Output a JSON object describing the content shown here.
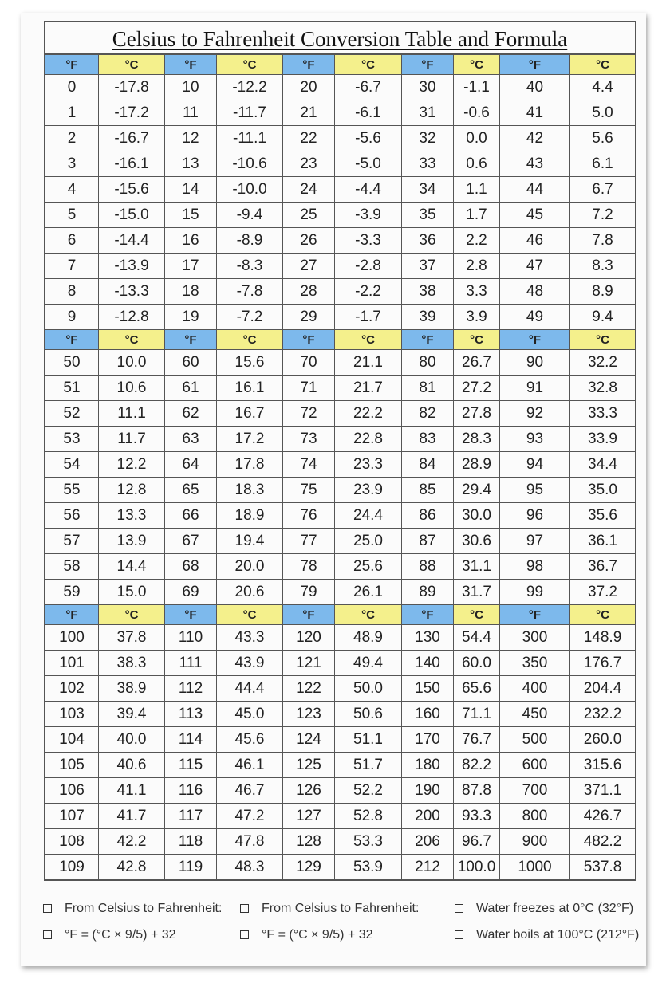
{
  "title": "Celsius to Fahrenheit Conversion Table and Formula",
  "sections": [
    {
      "header": [
        "°F",
        "°C",
        "°F",
        "°C",
        "°F",
        "°C",
        "°F",
        "°C",
        "°F",
        "°C"
      ],
      "rows": [
        [
          "0",
          "-17.8",
          "10",
          "-12.2",
          "20",
          "-6.7",
          "30",
          "-1.1",
          "40",
          "4.4"
        ],
        [
          "1",
          "-17.2",
          "11",
          "-11.7",
          "21",
          "-6.1",
          "31",
          "-0.6",
          "41",
          "5.0"
        ],
        [
          "2",
          "-16.7",
          "12",
          "-11.1",
          "22",
          "-5.6",
          "32",
          "0.0",
          "42",
          "5.6"
        ],
        [
          "3",
          "-16.1",
          "13",
          "-10.6",
          "23",
          "-5.0",
          "33",
          "0.6",
          "43",
          "6.1"
        ],
        [
          "4",
          "-15.6",
          "14",
          "-10.0",
          "24",
          "-4.4",
          "34",
          "1.1",
          "44",
          "6.7"
        ],
        [
          "5",
          "-15.0",
          "15",
          "-9.4",
          "25",
          "-3.9",
          "35",
          "1.7",
          "45",
          "7.2"
        ],
        [
          "6",
          "-14.4",
          "16",
          "-8.9",
          "26",
          "-3.3",
          "36",
          "2.2",
          "46",
          "7.8"
        ],
        [
          "7",
          "-13.9",
          "17",
          "-8.3",
          "27",
          "-2.8",
          "37",
          "2.8",
          "47",
          "8.3"
        ],
        [
          "8",
          "-13.3",
          "18",
          "-7.8",
          "28",
          "-2.2",
          "38",
          "3.3",
          "48",
          "8.9"
        ],
        [
          "9",
          "-12.8",
          "19",
          "-7.2",
          "29",
          "-1.7",
          "39",
          "3.9",
          "49",
          "9.4"
        ]
      ]
    },
    {
      "header": [
        "°F",
        "°C",
        "°F",
        "°C",
        "°F",
        "°C",
        "°F",
        "°C",
        "°F",
        "°C"
      ],
      "rows": [
        [
          "50",
          "10.0",
          "60",
          "15.6",
          "70",
          "21.1",
          "80",
          "26.7",
          "90",
          "32.2"
        ],
        [
          "51",
          "10.6",
          "61",
          "16.1",
          "71",
          "21.7",
          "81",
          "27.2",
          "91",
          "32.8"
        ],
        [
          "52",
          "11.1",
          "62",
          "16.7",
          "72",
          "22.2",
          "82",
          "27.8",
          "92",
          "33.3"
        ],
        [
          "53",
          "11.7",
          "63",
          "17.2",
          "73",
          "22.8",
          "83",
          "28.3",
          "93",
          "33.9"
        ],
        [
          "54",
          "12.2",
          "64",
          "17.8",
          "74",
          "23.3",
          "84",
          "28.9",
          "94",
          "34.4"
        ],
        [
          "55",
          "12.8",
          "65",
          "18.3",
          "75",
          "23.9",
          "85",
          "29.4",
          "95",
          "35.0"
        ],
        [
          "56",
          "13.3",
          "66",
          "18.9",
          "76",
          "24.4",
          "86",
          "30.0",
          "96",
          "35.6"
        ],
        [
          "57",
          "13.9",
          "67",
          "19.4",
          "77",
          "25.0",
          "87",
          "30.6",
          "97",
          "36.1"
        ],
        [
          "58",
          "14.4",
          "68",
          "20.0",
          "78",
          "25.6",
          "88",
          "31.1",
          "98",
          "36.7"
        ],
        [
          "59",
          "15.0",
          "69",
          "20.6",
          "79",
          "26.1",
          "89",
          "31.7",
          "99",
          "37.2"
        ]
      ]
    },
    {
      "header": [
        "°F",
        "°C",
        "°F",
        "°C",
        "°F",
        "°C",
        "°F",
        "°C",
        "°F",
        "°C"
      ],
      "rows": [
        [
          "100",
          "37.8",
          "110",
          "43.3",
          "120",
          "48.9",
          "130",
          "54.4",
          "300",
          "148.9"
        ],
        [
          "101",
          "38.3",
          "111",
          "43.9",
          "121",
          "49.4",
          "140",
          "60.0",
          "350",
          "176.7"
        ],
        [
          "102",
          "38.9",
          "112",
          "44.4",
          "122",
          "50.0",
          "150",
          "65.6",
          "400",
          "204.4"
        ],
        [
          "103",
          "39.4",
          "113",
          "45.0",
          "123",
          "50.6",
          "160",
          "71.1",
          "450",
          "232.2"
        ],
        [
          "104",
          "40.0",
          "114",
          "45.6",
          "124",
          "51.1",
          "170",
          "76.7",
          "500",
          "260.0"
        ],
        [
          "105",
          "40.6",
          "115",
          "46.1",
          "125",
          "51.7",
          "180",
          "82.2",
          "600",
          "315.6"
        ],
        [
          "106",
          "41.1",
          "116",
          "46.7",
          "126",
          "52.2",
          "190",
          "87.8",
          "700",
          "371.1"
        ],
        [
          "107",
          "41.7",
          "117",
          "47.2",
          "127",
          "52.8",
          "200",
          "93.3",
          "800",
          "426.7"
        ],
        [
          "108",
          "42.2",
          "118",
          "47.8",
          "128",
          "53.3",
          "206",
          "96.7",
          "900",
          "482.2"
        ],
        [
          "109",
          "42.8",
          "119",
          "48.3",
          "129",
          "53.9",
          "212",
          "100.0",
          "1000",
          "537.8"
        ]
      ]
    }
  ],
  "notes": [
    "From Celsius to Fahrenheit:",
    "From Celsius to Fahrenheit:",
    "Water freezes at 0°C (32°F)",
    "°F = (°C × 9/5) + 32",
    "°F = (°C × 9/5) + 32",
    "Water boils at 100°C (212°F)"
  ]
}
